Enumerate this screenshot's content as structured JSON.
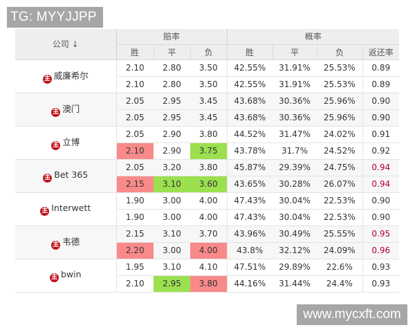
{
  "watermarks": {
    "top": "TG: MYYJJPP",
    "bottom": "www.mycxft.com"
  },
  "header": {
    "company": "公司 ↓",
    "odds_group": "赔率",
    "prob_group": "概率",
    "odds_cols": [
      "胜",
      "平",
      "负"
    ],
    "prob_cols": [
      "胜",
      "平",
      "负",
      "返还率"
    ]
  },
  "badge_label": "主",
  "colors": {
    "highlight_red": "#f98a8a",
    "highlight_green": "#9be04f",
    "return_rate_red": "#b0003a",
    "home_badge": "#c0141b"
  },
  "companies": [
    {
      "name": "威廉希尔",
      "rows": [
        {
          "odds": [
            "2.10",
            "2.80",
            "3.50"
          ],
          "prob": [
            "42.55%",
            "31.91%",
            "25.53%"
          ],
          "return_rate": "0.89"
        },
        {
          "odds": [
            "2.10",
            "2.80",
            "3.50"
          ],
          "prob": [
            "42.55%",
            "31.91%",
            "25.53%"
          ],
          "return_rate": "0.89"
        }
      ]
    },
    {
      "name": "澳门",
      "rows": [
        {
          "odds": [
            "2.05",
            "2.95",
            "3.45"
          ],
          "prob": [
            "43.68%",
            "30.36%",
            "25.96%"
          ],
          "return_rate": "0.90"
        },
        {
          "odds": [
            "2.05",
            "2.95",
            "3.45"
          ],
          "prob": [
            "43.68%",
            "30.36%",
            "25.96%"
          ],
          "return_rate": "0.90"
        }
      ]
    },
    {
      "name": "立博",
      "rows": [
        {
          "odds": [
            "2.05",
            "2.90",
            "3.80"
          ],
          "prob": [
            "44.52%",
            "31.47%",
            "24.02%"
          ],
          "return_rate": "0.91"
        },
        {
          "odds": [
            "2.10",
            "2.90",
            "3.75"
          ],
          "prob": [
            "43.78%",
            "31.7%",
            "24.52%"
          ],
          "return_rate": "0.92",
          "highlight": [
            "red",
            "",
            "green"
          ]
        }
      ]
    },
    {
      "name": "Bet 365",
      "rows": [
        {
          "odds": [
            "2.05",
            "3.20",
            "3.80"
          ],
          "prob": [
            "45.87%",
            "29.39%",
            "24.75%"
          ],
          "return_rate": "0.94",
          "rr_red": true
        },
        {
          "odds": [
            "2.15",
            "3.10",
            "3.60"
          ],
          "prob": [
            "43.65%",
            "30.28%",
            "26.07%"
          ],
          "return_rate": "0.94",
          "rr_red": true,
          "highlight": [
            "red",
            "green",
            "green"
          ]
        }
      ]
    },
    {
      "name": "Interwett",
      "rows": [
        {
          "odds": [
            "1.90",
            "3.00",
            "4.00"
          ],
          "prob": [
            "47.43%",
            "30.04%",
            "22.53%"
          ],
          "return_rate": "0.90"
        },
        {
          "odds": [
            "1.90",
            "3.00",
            "4.00"
          ],
          "prob": [
            "47.43%",
            "30.04%",
            "22.53%"
          ],
          "return_rate": "0.90"
        }
      ]
    },
    {
      "name": "韦德",
      "rows": [
        {
          "odds": [
            "2.15",
            "3.10",
            "3.70"
          ],
          "prob": [
            "43.96%",
            "30.49%",
            "25.55%"
          ],
          "return_rate": "0.95",
          "rr_red": true
        },
        {
          "odds": [
            "2.20",
            "3.00",
            "4.00"
          ],
          "prob": [
            "43.8%",
            "32.12%",
            "24.09%"
          ],
          "return_rate": "0.96",
          "rr_red": true,
          "highlight": [
            "red",
            "",
            "red"
          ]
        }
      ]
    },
    {
      "name": "bwin",
      "rows": [
        {
          "odds": [
            "1.95",
            "3.10",
            "4.10"
          ],
          "prob": [
            "47.51%",
            "29.89%",
            "22.6%"
          ],
          "return_rate": "0.93"
        },
        {
          "odds": [
            "2.10",
            "2.95",
            "3.80"
          ],
          "prob": [
            "44.16%",
            "31.44%",
            "24.4%"
          ],
          "return_rate": "0.93",
          "highlight": [
            "",
            "green",
            "red"
          ]
        }
      ]
    }
  ]
}
